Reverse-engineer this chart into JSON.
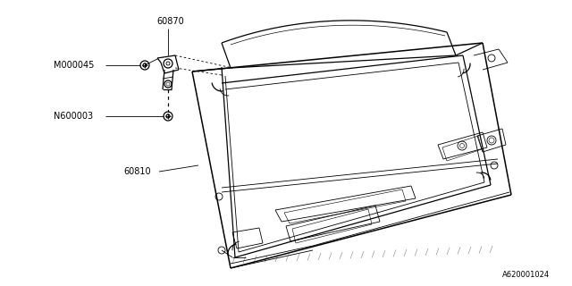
{
  "bg_color": "#ffffff",
  "line_color": "#000000",
  "diagram_id": "A620001024",
  "label_60870": "60870",
  "label_M000045": "M000045",
  "label_N600003": "N600003",
  "label_60810": "60810",
  "font_size": 7.0,
  "lw_main": 0.9,
  "lw_thin": 0.6,
  "lw_thick": 1.1
}
